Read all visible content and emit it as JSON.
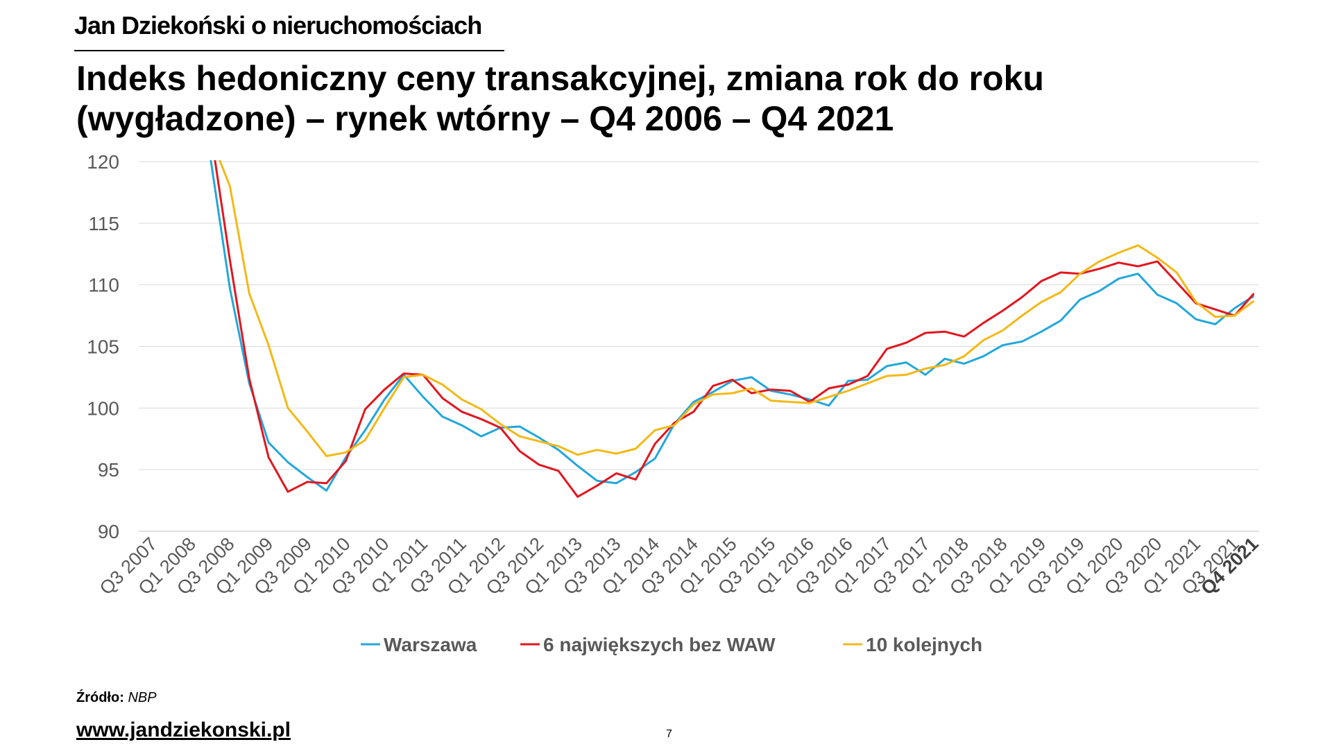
{
  "header": {
    "brand": "Jan Dziekoński o nieruchomościach",
    "title_line1": "Indeks hedoniczny ceny transakcyjnej, zmiana rok do roku",
    "title_line2": "(wygładzone) – rynek wtórny – Q4 2006 – Q4 2021"
  },
  "footer": {
    "source_label": "Źródło:",
    "source_value": "NBP",
    "url": "www.jandziekonski.pl",
    "page_number": "7"
  },
  "chart_data": {
    "type": "line",
    "title": "Indeks hedoniczny ceny transakcyjnej, zmiana rok do roku (wygładzone) – rynek wtórny – Q4 2006 – Q4 2021",
    "ylim": [
      90,
      120
    ],
    "yticks": [
      90,
      95,
      100,
      105,
      110,
      115,
      120
    ],
    "grid": true,
    "legend_position": "bottom",
    "x": [
      "Q3 2007",
      "Q4 2007",
      "Q1 2008",
      "Q2 2008",
      "Q3 2008",
      "Q4 2008",
      "Q1 2009",
      "Q2 2009",
      "Q3 2009",
      "Q4 2009",
      "Q1 2010",
      "Q2 2010",
      "Q3 2010",
      "Q4 2010",
      "Q1 2011",
      "Q2 2011",
      "Q3 2011",
      "Q4 2011",
      "Q1 2012",
      "Q2 2012",
      "Q3 2012",
      "Q4 2012",
      "Q1 2013",
      "Q2 2013",
      "Q3 2013",
      "Q4 2013",
      "Q1 2014",
      "Q2 2014",
      "Q3 2014",
      "Q4 2014",
      "Q1 2015",
      "Q2 2015",
      "Q3 2015",
      "Q4 2015",
      "Q1 2016",
      "Q2 2016",
      "Q3 2016",
      "Q4 2016",
      "Q1 2017",
      "Q2 2017",
      "Q3 2017",
      "Q4 2017",
      "Q1 2018",
      "Q2 2018",
      "Q3 2018",
      "Q4 2018",
      "Q1 2019",
      "Q2 2019",
      "Q3 2019",
      "Q4 2019",
      "Q1 2020",
      "Q2 2020",
      "Q3 2020",
      "Q4 2020",
      "Q1 2021",
      "Q2 2021",
      "Q3 2021",
      "Q4 2021"
    ],
    "x_tick_labels": [
      "Q3 2007",
      "Q1 2008",
      "Q3 2008",
      "Q1 2009",
      "Q3 2009",
      "Q1 2010",
      "Q3 2010",
      "Q1 2011",
      "Q3 2011",
      "Q1 2012",
      "Q3 2012",
      "Q1 2013",
      "Q3 2013",
      "Q1 2014",
      "Q3 2014",
      "Q1 2015",
      "Q3 2015",
      "Q1 2016",
      "Q3 2016",
      "Q1 2017",
      "Q3 2017",
      "Q1 2018",
      "Q3 2018",
      "Q1 2019",
      "Q3 2019",
      "Q1 2020",
      "Q3 2020",
      "Q1 2021",
      "Q3 2021",
      "Q4 2021"
    ],
    "x_tick_bold": "Q4 2021",
    "series": [
      {
        "name": "Warszawa",
        "color": "#22A7DB",
        "values": [
          null,
          null,
          null,
          null,
          109.7,
          102.0,
          97.2,
          95.6,
          94.4,
          93.3,
          96.0,
          98.2,
          100.7,
          102.7,
          100.9,
          99.3,
          98.6,
          97.7,
          98.4,
          98.5,
          97.6,
          96.6,
          95.3,
          94.1,
          93.9,
          94.8,
          95.9,
          98.7,
          100.5,
          101.3,
          102.2,
          102.5,
          101.4,
          101.1,
          100.7,
          100.2,
          102.2,
          102.3,
          103.4,
          103.7,
          102.7,
          104.0,
          103.6,
          104.2,
          105.1,
          105.4,
          106.2,
          107.1,
          108.8,
          109.5,
          110.5,
          110.9,
          109.2,
          108.5,
          107.2,
          106.8,
          108.1,
          109.1
        ]
      },
      {
        "name": "6 największych bez WAW",
        "color": "#E3151E",
        "values": [
          null,
          null,
          null,
          null,
          112.0,
          102.4,
          96.0,
          93.2,
          94.0,
          93.9,
          95.7,
          99.9,
          101.5,
          102.8,
          102.7,
          100.8,
          99.7,
          99.1,
          98.4,
          96.5,
          95.4,
          94.9,
          92.8,
          93.7,
          94.7,
          94.2,
          97.1,
          98.8,
          99.7,
          101.8,
          102.3,
          101.2,
          101.5,
          101.4,
          100.5,
          101.6,
          101.9,
          102.6,
          104.8,
          105.3,
          106.1,
          106.2,
          105.8,
          106.9,
          107.9,
          109.0,
          110.3,
          111.0,
          110.9,
          111.3,
          111.8,
          111.5,
          111.9,
          110.2,
          108.5,
          108.0,
          107.5,
          109.3
        ]
      },
      {
        "name": "10 kolejnych",
        "color": "#F4B816",
        "values": [
          null,
          null,
          null,
          null,
          118.0,
          109.3,
          105.1,
          100.0,
          98.1,
          96.1,
          96.4,
          97.4,
          100.0,
          102.5,
          102.7,
          101.9,
          100.7,
          99.9,
          98.7,
          97.7,
          97.3,
          96.9,
          96.2,
          96.6,
          96.3,
          96.7,
          98.2,
          98.6,
          100.3,
          101.1,
          101.2,
          101.6,
          100.6,
          100.5,
          100.4,
          100.9,
          101.4,
          102.0,
          102.6,
          102.7,
          103.2,
          103.5,
          104.2,
          105.5,
          106.3,
          107.5,
          108.6,
          109.4,
          110.9,
          111.9,
          112.6,
          113.2,
          112.2,
          111.0,
          108.6,
          107.4,
          107.5,
          108.7
        ]
      }
    ]
  }
}
